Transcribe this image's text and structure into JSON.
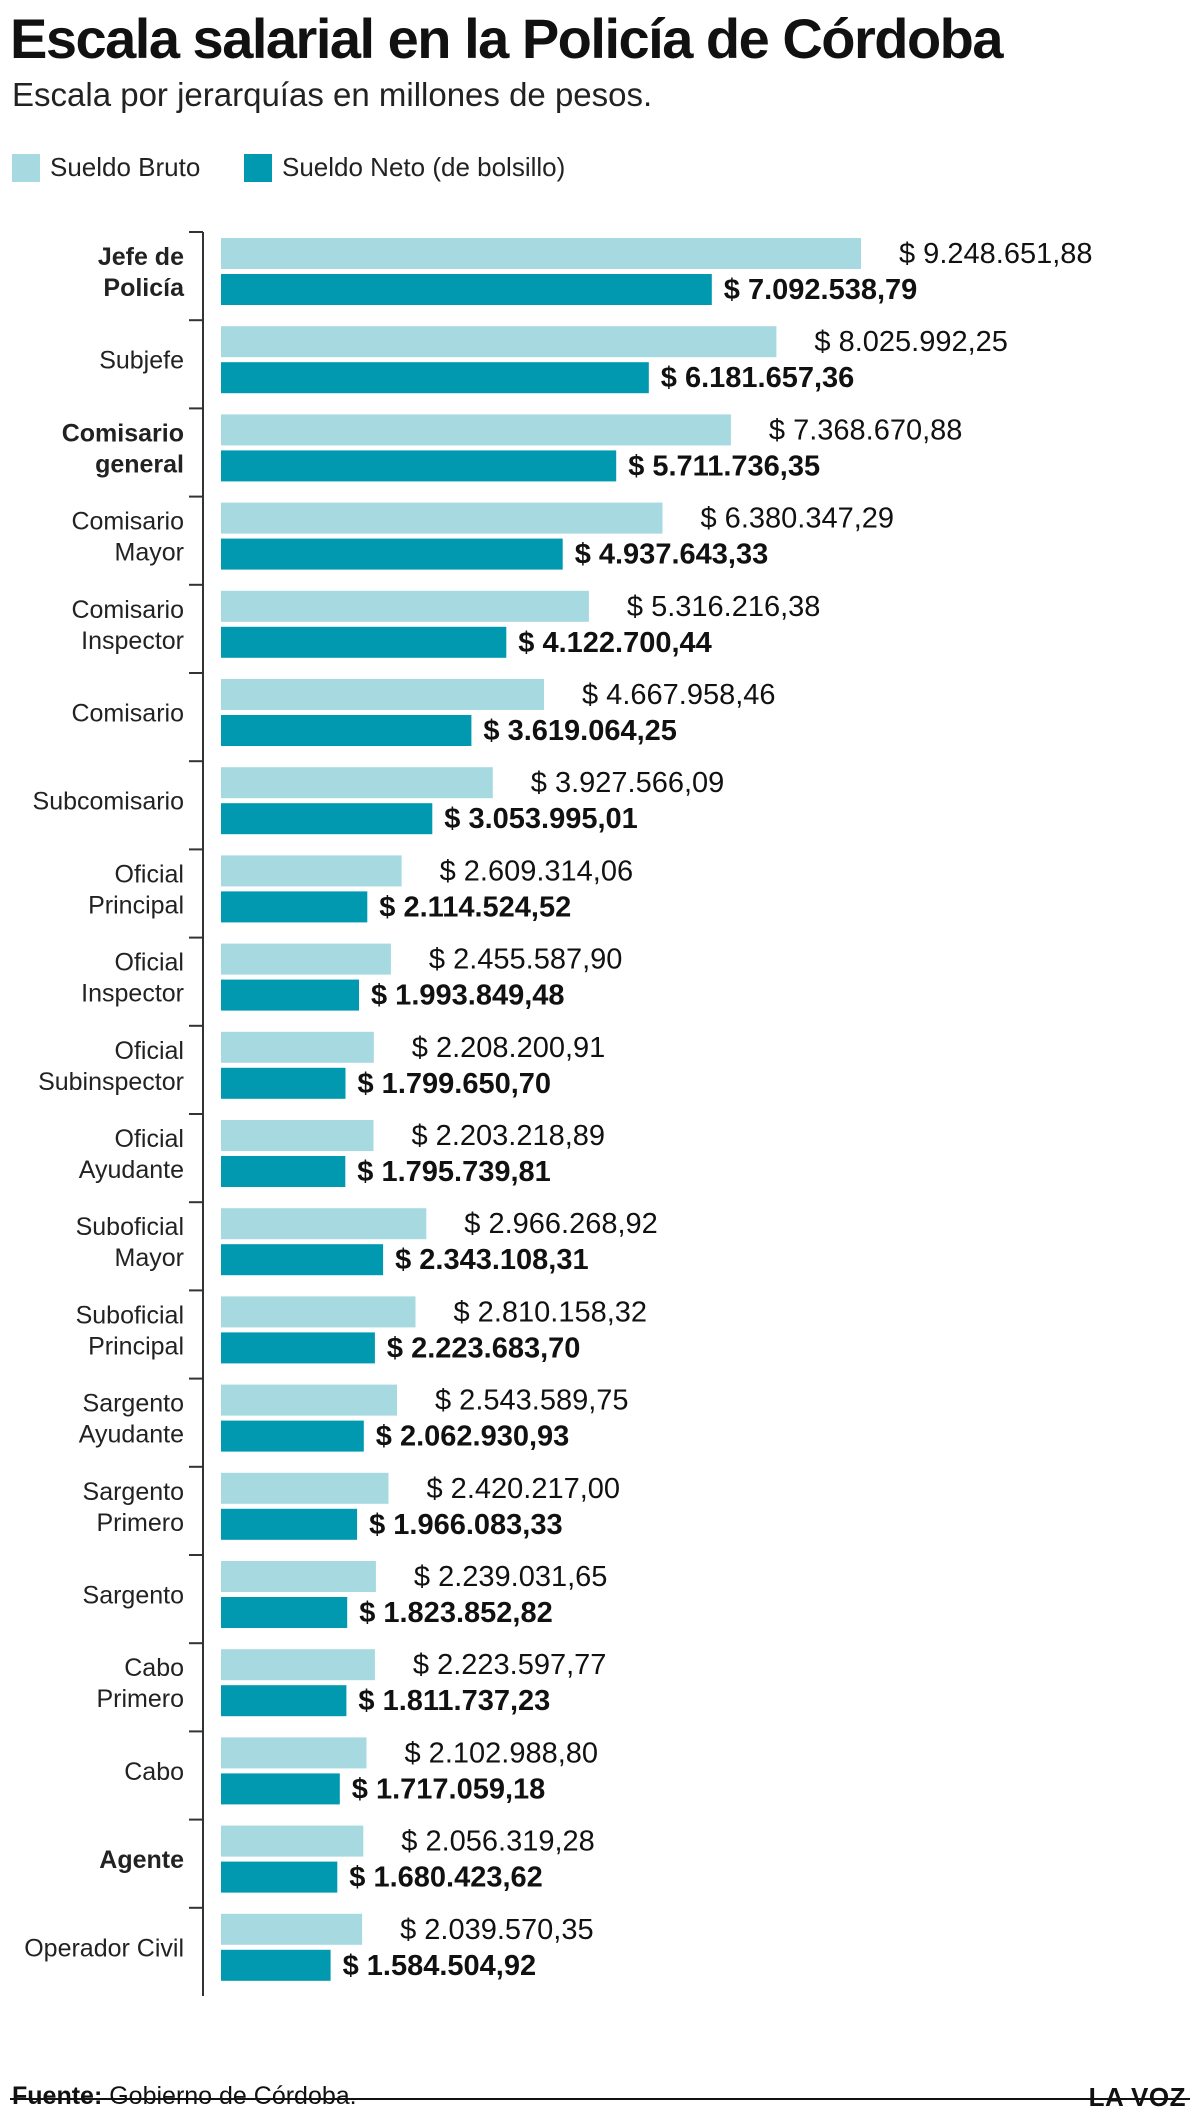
{
  "title": "Escala salarial en la Policía de Córdoba",
  "subtitle": "Escala por jerarquías en millones de pesos.",
  "legend": [
    {
      "label": "Sueldo Bruto",
      "color": "#a6d9e0"
    },
    {
      "label": "Sueldo Neto (de bolsillo)",
      "color": "#0099b0"
    }
  ],
  "source": {
    "label": "Fuente:",
    "text": "Gobierno de Córdoba."
  },
  "brand": "LA VOZ",
  "chart_data": {
    "type": "bar",
    "orientation": "horizontal",
    "grouped": true,
    "categories": [
      {
        "lines": [
          "Jefe de",
          "Policía"
        ],
        "bold": true
      },
      {
        "lines": [
          "Subjefe"
        ],
        "bold": false
      },
      {
        "lines": [
          "Comisario",
          "general"
        ],
        "bold": true
      },
      {
        "lines": [
          "Comisario",
          "Mayor"
        ],
        "bold": false
      },
      {
        "lines": [
          "Comisario",
          "Inspector"
        ],
        "bold": false
      },
      {
        "lines": [
          "Comisario"
        ],
        "bold": false
      },
      {
        "lines": [
          "Subcomisario"
        ],
        "bold": false
      },
      {
        "lines": [
          "Oficial",
          "Principal"
        ],
        "bold": false
      },
      {
        "lines": [
          "Oficial",
          "Inspector"
        ],
        "bold": false
      },
      {
        "lines": [
          "Oficial",
          "Subinspector"
        ],
        "bold": false
      },
      {
        "lines": [
          "Oficial",
          "Ayudante"
        ],
        "bold": false
      },
      {
        "lines": [
          "Suboficial",
          "Mayor"
        ],
        "bold": false
      },
      {
        "lines": [
          "Suboficial",
          "Principal"
        ],
        "bold": false
      },
      {
        "lines": [
          "Sargento",
          "Ayudante"
        ],
        "bold": false
      },
      {
        "lines": [
          "Sargento",
          "Primero"
        ],
        "bold": false
      },
      {
        "lines": [
          "Sargento"
        ],
        "bold": false
      },
      {
        "lines": [
          "Cabo",
          "Primero"
        ],
        "bold": false
      },
      {
        "lines": [
          "Cabo"
        ],
        "bold": false
      },
      {
        "lines": [
          "Agente"
        ],
        "bold": true
      },
      {
        "lines": [
          "Operador Civil"
        ],
        "bold": false
      }
    ],
    "series": [
      {
        "name": "Sueldo Bruto",
        "color": "#a6d9e0",
        "values": [
          9248651.88,
          8025992.25,
          7368670.88,
          6380347.29,
          5316216.38,
          4667958.46,
          3927566.09,
          2609314.06,
          2455587.9,
          2208200.91,
          2203218.89,
          2966268.92,
          2810158.32,
          2543589.75,
          2420217.0,
          2239031.65,
          2223597.77,
          2102988.8,
          2056319.28,
          2039570.35
        ],
        "labels": [
          "$ 9.248.651,88",
          "$ 8.025.992,25",
          "$ 7.368.670,88",
          "$ 6.380.347,29",
          "$ 5.316.216,38",
          "$ 4.667.958,46",
          "$ 3.927.566,09",
          "$ 2.609.314,06",
          "$ 2.455.587,90",
          "$ 2.208.200,91",
          "$ 2.203.218,89",
          "$ 2.966.268,92",
          "$ 2.810.158,32",
          "$ 2.543.589,75",
          "$ 2.420.217,00",
          "$ 2.239.031,65",
          "$ 2.223.597,77",
          "$ 2.102.988,80",
          "$ 2.056.319,28",
          "$ 2.039.570,35"
        ]
      },
      {
        "name": "Sueldo Neto (de bolsillo)",
        "color": "#0099b0",
        "values": [
          7092538.79,
          6181657.36,
          5711736.35,
          4937643.33,
          4122700.44,
          3619064.25,
          3053995.01,
          2114524.52,
          1993849.48,
          1799650.7,
          1795739.81,
          2343108.31,
          2223683.7,
          2062930.93,
          1966083.33,
          1823852.82,
          1811737.23,
          1717059.18,
          1680423.62,
          1584504.92
        ],
        "labels": [
          "$ 7.092.538,79",
          "$ 6.181.657,36",
          "$ 5.711.736,35",
          "$ 4.937.643,33",
          "$ 4.122.700,44",
          "$ 3.619.064,25",
          "$ 3.053.995,01",
          "$ 2.114.524,52",
          "$ 1.993.849,48",
          "$ 1.799.650,70",
          "$ 1.795.739,81",
          "$ 2.343.108,31",
          "$ 2.223.683,70",
          "$ 2.062.930,93",
          "$ 1.966.083,33",
          "$ 1.823.852,82",
          "$ 1.811.737,23",
          "$ 1.717.059,18",
          "$ 1.680.423,62",
          "$ 1.584.504,92"
        ]
      }
    ],
    "xlim": [
      0,
      9248651.88
    ],
    "grid": false,
    "legend_position": "top-left"
  }
}
